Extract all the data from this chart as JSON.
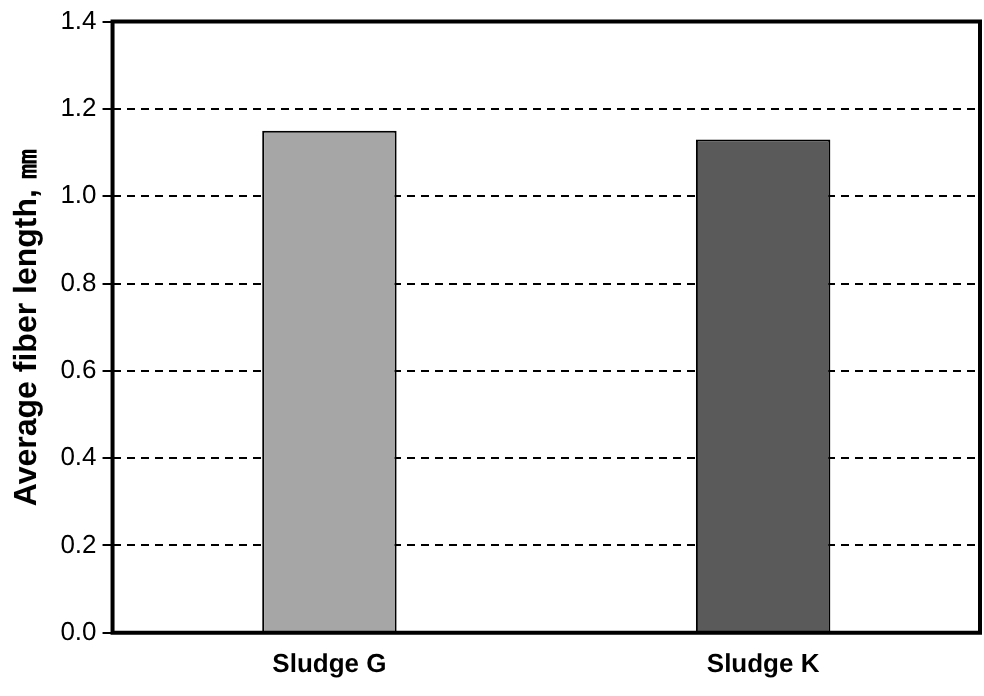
{
  "chart_data": {
    "type": "bar",
    "ylabel": "Average fiber length, ㎜",
    "categories": [
      "Sludge G",
      "Sludge K"
    ],
    "values": [
      1.15,
      1.13
    ],
    "colors": [
      "#a6a6a6",
      "#5a5a5a"
    ],
    "ylim": [
      0,
      1.4
    ],
    "yticks": [
      {
        "value": 0,
        "label": "0.0"
      },
      0.2,
      0.4,
      0.6,
      0.8,
      {
        "value": 1,
        "label": "1.0"
      },
      1.2,
      1.4
    ],
    "grid": "y",
    "legend": false
  }
}
